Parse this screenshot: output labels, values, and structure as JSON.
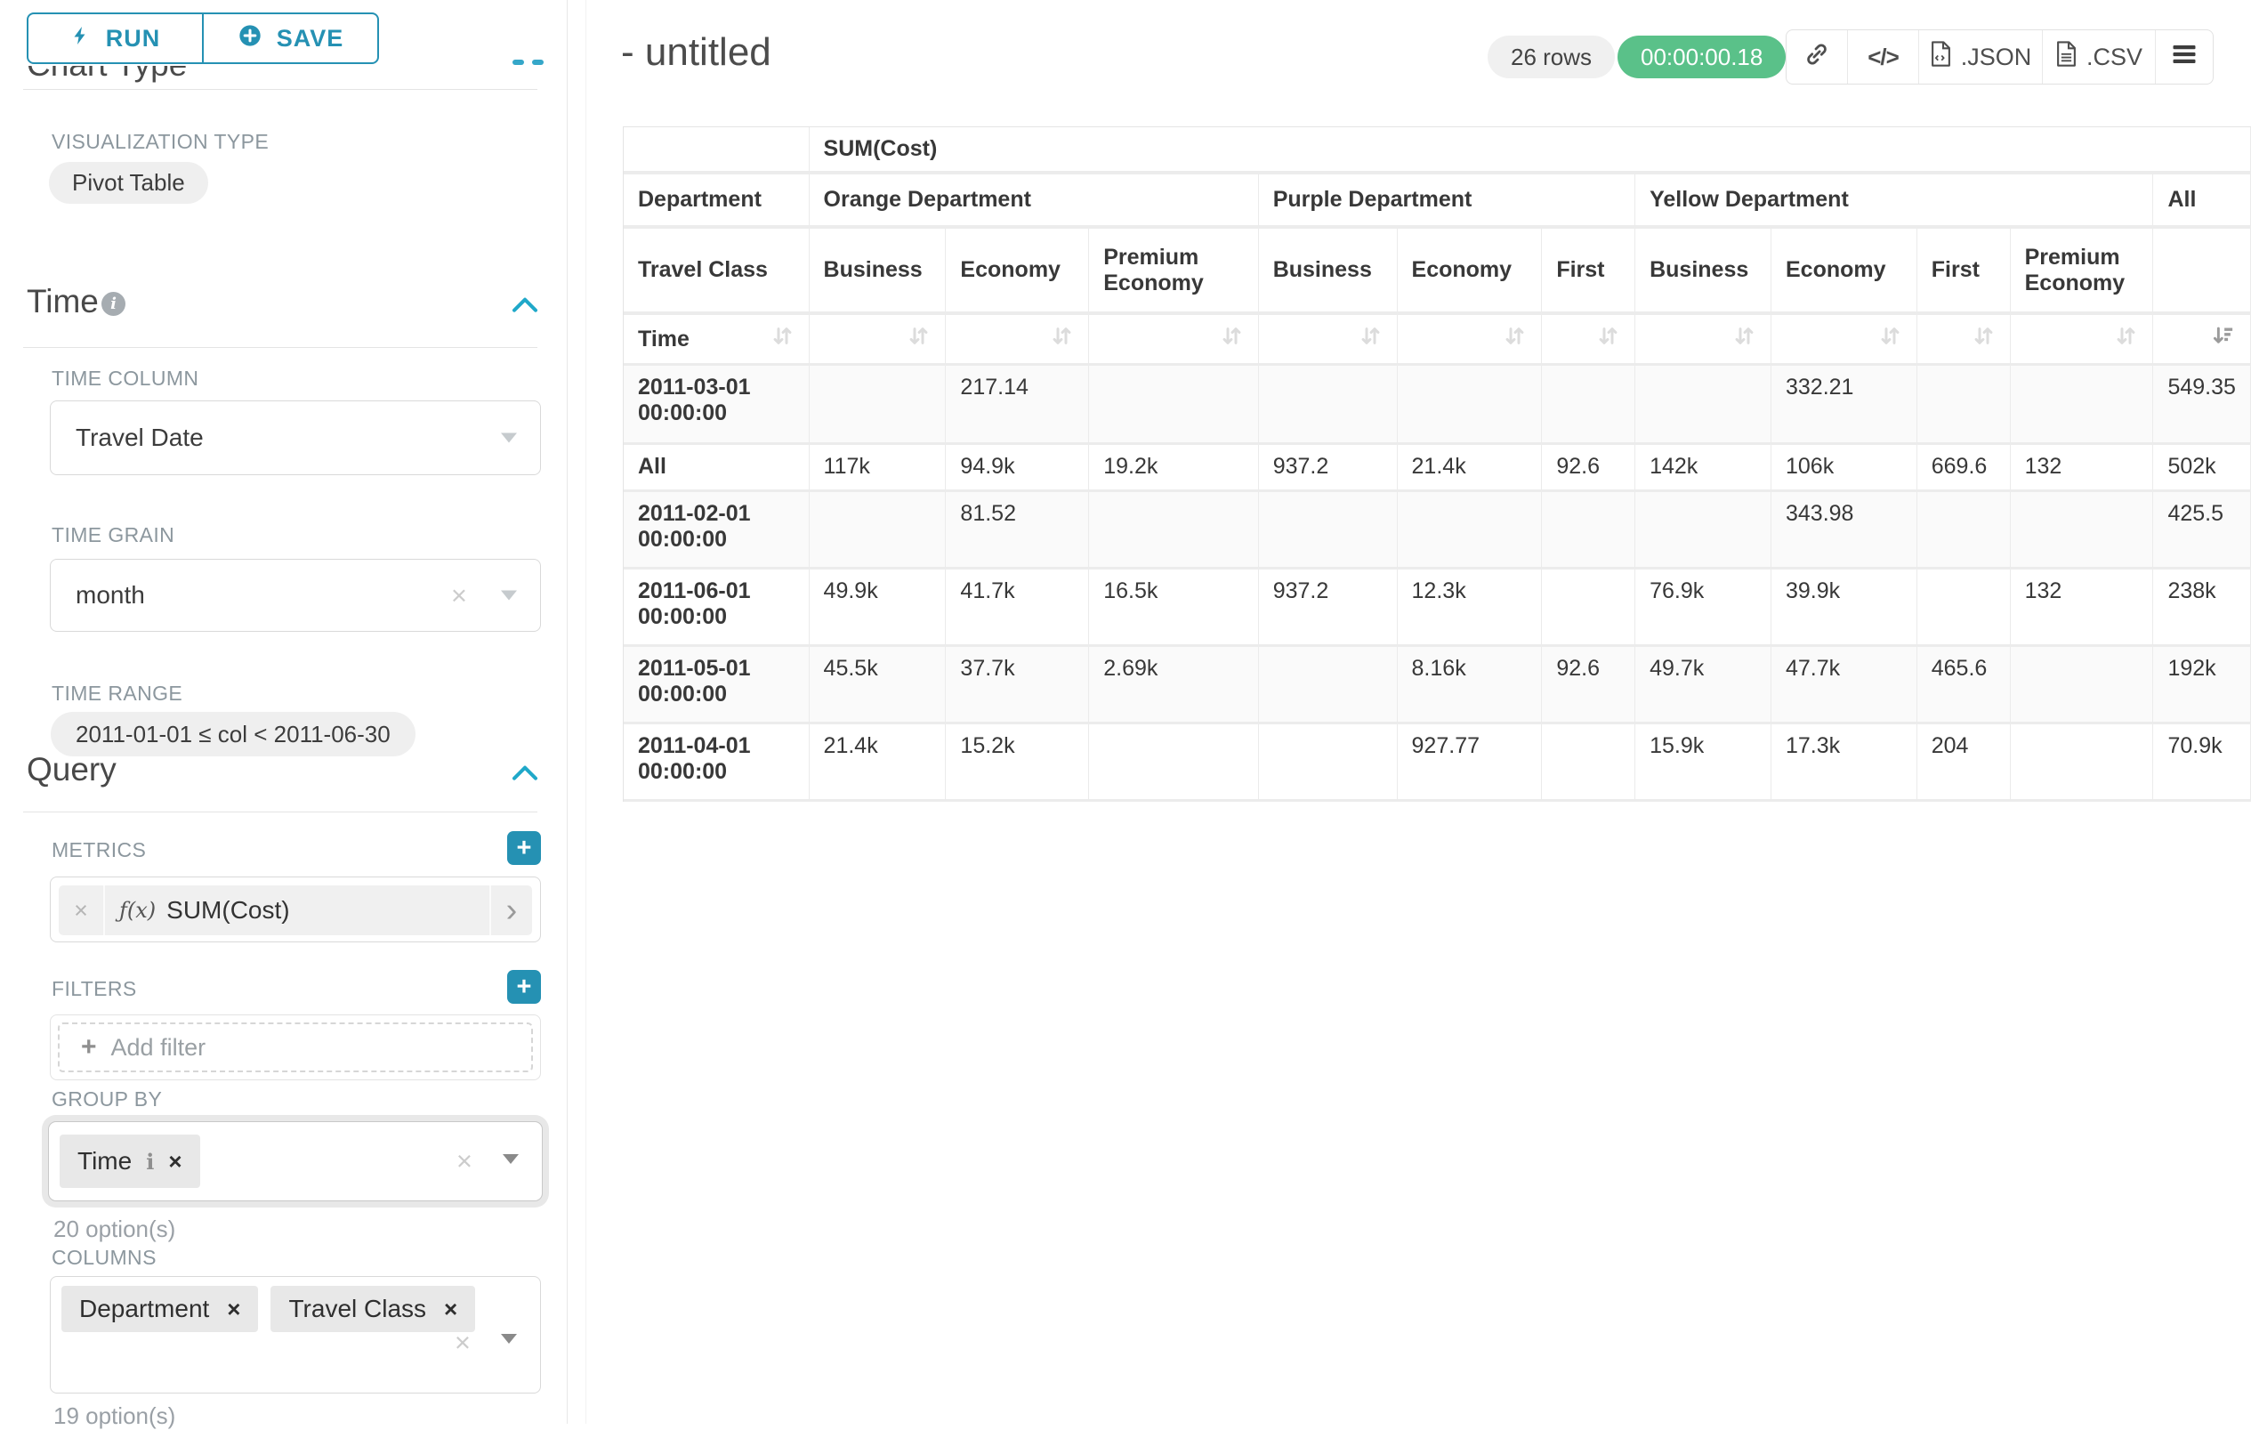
{
  "colors": {
    "accent": "#20a7c9",
    "timer_green": "#5ac189"
  },
  "sidebar": {
    "run_button": "RUN",
    "save_button": "SAVE",
    "scrolled_heading": "Chart Type",
    "viz_type": {
      "label": "VISUALIZATION TYPE",
      "value": "Pivot Table"
    },
    "time": {
      "heading": "Time",
      "time_column_label": "TIME COLUMN",
      "time_column_value": "Travel Date",
      "time_grain_label": "TIME GRAIN",
      "time_grain_value": "month",
      "time_range_label": "TIME RANGE",
      "time_range_value": "2011-01-01 ≤ col < 2011-06-30"
    },
    "query": {
      "heading": "Query",
      "metrics_label": "METRICS",
      "metric_prefix": "ƒ(x)",
      "metric_value": "SUM(Cost)",
      "filters_label": "FILTERS",
      "add_filter_placeholder": "Add filter",
      "group_by_label": "GROUP BY",
      "group_by_values": [
        "Time"
      ],
      "group_by_options_hint": "20 option(s)",
      "columns_label": "COLUMNS",
      "columns_values": [
        "Department",
        "Travel Class"
      ],
      "columns_options_hint": "19 option(s)"
    }
  },
  "header": {
    "title": "- untitled",
    "row_count": "26 rows",
    "timer": "00:00:00.18",
    "export_json": ".JSON",
    "export_csv": ".CSV"
  },
  "pivot_table": {
    "metric_header": "SUM(Cost)",
    "row_dim_header": "Department",
    "row_dim_subheader": "Travel Class",
    "time_header": "Time",
    "column_groups": [
      {
        "label": "Orange Department",
        "columns": [
          "Business",
          "Economy",
          "Premium Economy"
        ]
      },
      {
        "label": "Purple Department",
        "columns": [
          "Business",
          "Economy",
          "First"
        ]
      },
      {
        "label": "Yellow Department",
        "columns": [
          "Business",
          "Economy",
          "First",
          "Premium Economy"
        ]
      },
      {
        "label": "All",
        "columns": [
          ""
        ]
      }
    ],
    "rows": [
      {
        "label": "2011-03-01 00:00:00",
        "values": [
          "",
          "217.14",
          "",
          "",
          "",
          "",
          "",
          "332.21",
          "",
          "",
          "549.35"
        ]
      },
      {
        "label": "All",
        "values": [
          "117k",
          "94.9k",
          "19.2k",
          "937.2",
          "21.4k",
          "92.6",
          "142k",
          "106k",
          "669.6",
          "132",
          "502k"
        ]
      },
      {
        "label": "2011-02-01 00:00:00",
        "values": [
          "",
          "81.52",
          "",
          "",
          "",
          "",
          "",
          "343.98",
          "",
          "",
          "425.5"
        ]
      },
      {
        "label": "2011-06-01 00:00:00",
        "values": [
          "49.9k",
          "41.7k",
          "16.5k",
          "937.2",
          "12.3k",
          "",
          "76.9k",
          "39.9k",
          "",
          "132",
          "238k"
        ]
      },
      {
        "label": "2011-05-01 00:00:00",
        "values": [
          "45.5k",
          "37.7k",
          "2.69k",
          "",
          "8.16k",
          "92.6",
          "49.7k",
          "47.7k",
          "465.6",
          "",
          "192k"
        ]
      },
      {
        "label": "2011-04-01 00:00:00",
        "values": [
          "21.4k",
          "15.2k",
          "",
          "",
          "927.77",
          "",
          "15.9k",
          "17.3k",
          "204",
          "",
          "70.9k"
        ]
      }
    ]
  }
}
